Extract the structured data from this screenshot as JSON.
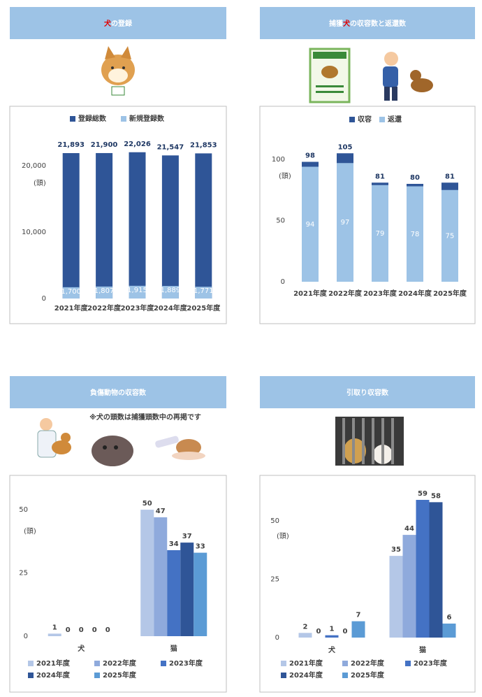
{
  "chart_data": [
    {
      "type": "overlapping_bar",
      "title_parts": [
        {
          "text": "犬",
          "color": "#e00000"
        },
        {
          "text": "の登録",
          "color": "#ffffff"
        }
      ],
      "categories": [
        "2021年度",
        "2022年度",
        "2023年度",
        "2024年度",
        "2025年度"
      ],
      "series": [
        {
          "name": "登録総数",
          "color": "#2f5597",
          "values": [
            21893,
            21900,
            22026,
            21547,
            21853
          ],
          "value_labels": [
            "21,893",
            "21,900",
            "22,026",
            "21,547",
            "21,853"
          ]
        },
        {
          "name": "新規登録数",
          "color": "#9dc3e6",
          "values": [
            1700,
            1807,
            1915,
            1889,
            1771
          ],
          "value_labels": [
            "1,700",
            "1,807",
            "1,915",
            "1,889",
            "1,771"
          ]
        }
      ],
      "y_label": "(頭)",
      "ylim": [
        0,
        23000
      ],
      "yticks": [
        0,
        {
          "value": 10000,
          "label": "10,000"
        },
        {
          "value": 20000,
          "label": "20,000"
        }
      ],
      "grid": false,
      "legend": "top"
    },
    {
      "type": "overlapping_bar",
      "title_parts": [
        {
          "text": "捕獲",
          "color": "#ffffff"
        },
        {
          "text": "犬",
          "color": "#e00000"
        },
        {
          "text": "の収容数と返還数",
          "color": "#ffffff"
        }
      ],
      "categories": [
        "2021年度",
        "2022年度",
        "2023年度",
        "2024年度",
        "2025年度"
      ],
      "series": [
        {
          "name": "収容",
          "color": "#2f5597",
          "values": [
            98,
            105,
            81,
            80,
            81
          ]
        },
        {
          "name": "返還",
          "color": "#9dc3e6",
          "values": [
            94,
            97,
            79,
            78,
            75
          ]
        }
      ],
      "y_label": "(頭)",
      "ylim": [
        0,
        110
      ],
      "yticks": [
        0,
        50,
        100
      ],
      "grid": false,
      "legend": "top"
    },
    {
      "type": "grouped_bar",
      "title_parts": [
        {
          "text": "負傷動物の収容数",
          "color": "#ffffff"
        }
      ],
      "note": "※犬の頭数は捕獲頭数中の再掲です",
      "categories": [
        "犬",
        "猫"
      ],
      "series": [
        {
          "name": "2021年度",
          "color": "#b4c7e7",
          "values": [
            1,
            50
          ]
        },
        {
          "name": "2022年度",
          "color": "#8faadc",
          "values": [
            0,
            47
          ]
        },
        {
          "name": "2023年度",
          "color": "#4472c4",
          "values": [
            0,
            34
          ]
        },
        {
          "name": "2024年度",
          "color": "#2f5597",
          "values": [
            0,
            37
          ]
        },
        {
          "name": "2025年度",
          "color": "#5b9bd5",
          "values": [
            0,
            33
          ]
        }
      ],
      "y_label": "(頭)",
      "ylim": [
        0,
        55
      ],
      "yticks": [
        0,
        25,
        50
      ],
      "grid": false,
      "legend": "bottom"
    },
    {
      "type": "grouped_bar",
      "title_parts": [
        {
          "text": "引取り収容数",
          "color": "#ffffff"
        }
      ],
      "categories": [
        "犬",
        "猫"
      ],
      "series": [
        {
          "name": "2021年度",
          "color": "#b4c7e7",
          "values": [
            2,
            35
          ]
        },
        {
          "name": "2022年度",
          "color": "#8faadc",
          "values": [
            0,
            44
          ]
        },
        {
          "name": "2023年度",
          "color": "#4472c4",
          "values": [
            1,
            59
          ]
        },
        {
          "name": "2024年度",
          "color": "#2f5597",
          "values": [
            0,
            58
          ]
        },
        {
          "name": "2025年度",
          "color": "#5b9bd5",
          "values": [
            7,
            6
          ]
        }
      ],
      "y_label": "(頭)",
      "ylim": [
        0,
        62
      ],
      "yticks": [
        0,
        25,
        50
      ],
      "grid": false,
      "legend": "bottom"
    }
  ]
}
